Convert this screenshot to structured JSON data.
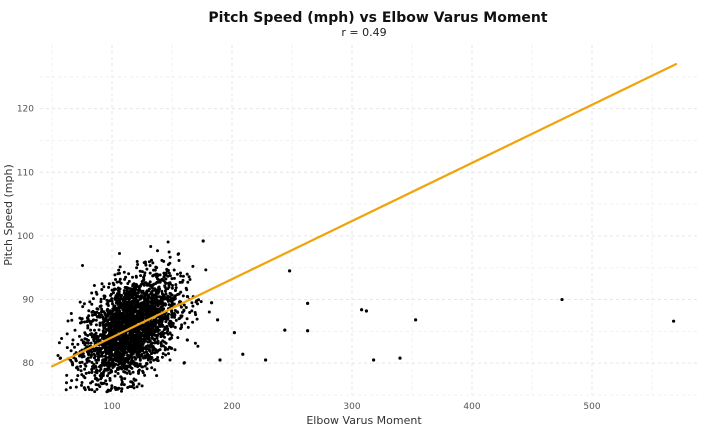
{
  "chart_data": {
    "type": "scatter",
    "title": "Pitch Speed (mph) vs Elbow Varus Moment",
    "subtitle": "r =  0.49",
    "xlabel": "Elbow Varus Moment",
    "ylabel": "Pitch Speed (mph)",
    "xlim": [
      40,
      590
    ],
    "ylim": [
      75,
      130
    ],
    "x_ticks": [
      100,
      200,
      300,
      400,
      500
    ],
    "y_ticks": [
      80,
      90,
      100,
      110,
      120
    ],
    "grid": true,
    "point_color": "#000000",
    "line_color": "#f0a30a",
    "regression_line": {
      "x": [
        50,
        570
      ],
      "y": [
        79.5,
        127
      ]
    },
    "cluster": {
      "n": 2600,
      "x_center": 115,
      "x_sd": 20,
      "y_center": 85.5,
      "y_sd": 4.3,
      "correlation": 0.45,
      "x_range": [
        55,
        190
      ],
      "y_range": [
        75.5,
        99.5
      ]
    },
    "outliers": [
      {
        "x": 176,
        "y": 99.2
      },
      {
        "x": 183,
        "y": 89.5
      },
      {
        "x": 188,
        "y": 86.8
      },
      {
        "x": 190,
        "y": 80.5
      },
      {
        "x": 202,
        "y": 84.8
      },
      {
        "x": 209,
        "y": 81.4
      },
      {
        "x": 228,
        "y": 80.5
      },
      {
        "x": 244,
        "y": 85.2
      },
      {
        "x": 248,
        "y": 94.5
      },
      {
        "x": 263,
        "y": 89.4
      },
      {
        "x": 263,
        "y": 85.1
      },
      {
        "x": 308,
        "y": 88.4
      },
      {
        "x": 312,
        "y": 88.2
      },
      {
        "x": 318,
        "y": 80.5
      },
      {
        "x": 340,
        "y": 80.8
      },
      {
        "x": 353,
        "y": 86.8
      },
      {
        "x": 475,
        "y": 90.0
      },
      {
        "x": 568,
        "y": 86.6
      }
    ]
  }
}
